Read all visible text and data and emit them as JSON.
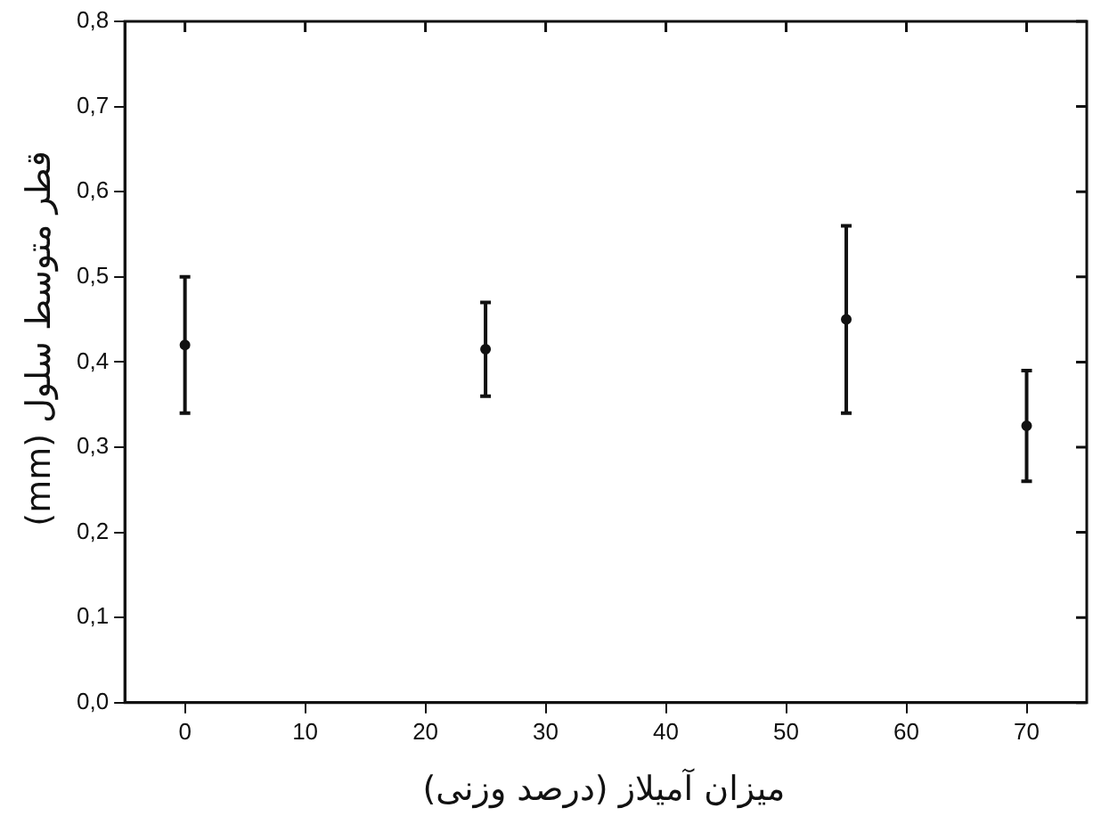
{
  "chart_data": {
    "type": "scatter",
    "xlabel": "میزان آمیلاز (درصد وزنی)",
    "ylabel": "قطر متوسط سلول (mm)",
    "x": [
      0,
      25,
      55,
      70
    ],
    "series": [
      {
        "color": "#111111",
        "values": [
          0.42,
          0.415,
          0.45,
          0.325
        ],
        "errors": [
          [
            0.34,
            0.5
          ],
          [
            0.36,
            0.47
          ],
          [
            0.34,
            0.56
          ],
          [
            0.26,
            0.39
          ]
        ]
      }
    ],
    "xlim": [
      -5,
      75
    ],
    "xticks": [
      0,
      10,
      20,
      30,
      40,
      50,
      60,
      70
    ],
    "ylim": [
      0,
      0.8
    ],
    "yticks": [
      {
        "value": 0,
        "label": "0,0"
      },
      {
        "value": 0.1,
        "label": "0,1"
      },
      {
        "value": 0.2,
        "label": "0,2"
      },
      {
        "value": 0.3,
        "label": "0,3"
      },
      {
        "value": 0.4,
        "label": "0,4"
      },
      {
        "value": 0.5,
        "label": "0,5"
      },
      {
        "value": 0.6,
        "label": "0,6"
      },
      {
        "value": 0.7,
        "label": "0,7"
      },
      {
        "value": 0.8,
        "label": "0,8"
      }
    ],
    "grid": false,
    "legend": false,
    "marker": "circle"
  }
}
